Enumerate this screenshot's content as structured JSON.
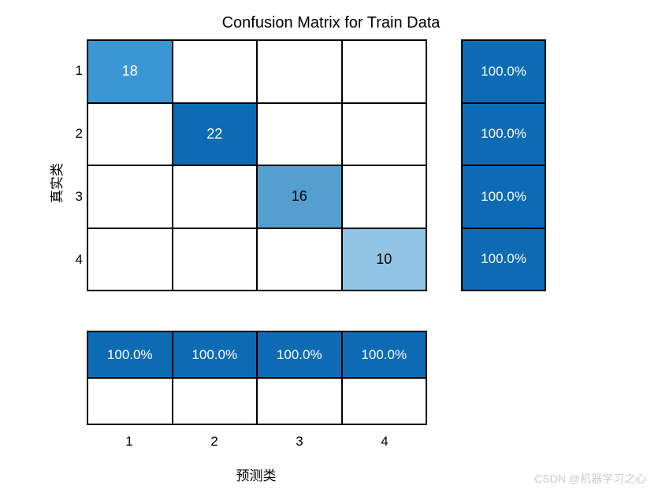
{
  "confusion_matrix": {
    "type": "heatmap",
    "title": "Confusion Matrix for Train Data",
    "title_fontsize": 20,
    "y_label": "真实类",
    "x_label": "预测类",
    "label_fontsize": 17,
    "classes": [
      "1",
      "2",
      "3",
      "4"
    ],
    "matrix": [
      [
        18,
        0,
        0,
        0
      ],
      [
        0,
        22,
        0,
        0
      ],
      [
        0,
        0,
        16,
        0
      ],
      [
        0,
        0,
        0,
        10
      ]
    ],
    "cell_display": [
      [
        "18",
        "",
        "",
        ""
      ],
      [
        "",
        "22",
        "",
        ""
      ],
      [
        "",
        "",
        "16",
        ""
      ],
      [
        "",
        "",
        "",
        "10"
      ]
    ],
    "cell_colors": [
      [
        "#3b97d3",
        "#ffffff",
        "#ffffff",
        "#ffffff"
      ],
      [
        "#ffffff",
        "#0d6bb4",
        "#ffffff",
        "#ffffff"
      ],
      [
        "#ffffff",
        "#ffffff",
        "#559fd0",
        "#ffffff"
      ],
      [
        "#ffffff",
        "#ffffff",
        "#ffffff",
        "#92c4e4"
      ]
    ],
    "cell_text_colors": [
      [
        "#ffffff",
        "#000000",
        "#000000",
        "#000000"
      ],
      [
        "#000000",
        "#ffffff",
        "#000000",
        "#000000"
      ],
      [
        "#000000",
        "#000000",
        "#000000",
        "#000000"
      ],
      [
        "#000000",
        "#000000",
        "#000000",
        "#000000"
      ]
    ],
    "row_summary": [
      "100.0%",
      "100.0%",
      "100.0%",
      "100.0%"
    ],
    "row_summary_color": "#0d6bb4",
    "col_summary_top": [
      "100.0%",
      "100.0%",
      "100.0%",
      "100.0%"
    ],
    "col_summary_top_color": "#0d6bb4",
    "col_summary_bottom": [
      "",
      "",
      "",
      ""
    ],
    "col_summary_bottom_color": "#ffffff",
    "border_color": "#000000",
    "background_color": "#ffffff",
    "cell_fontsize": 18,
    "summary_fontsize": 17,
    "tick_fontsize": 17
  },
  "watermark": "CSDN @机器学习之心"
}
